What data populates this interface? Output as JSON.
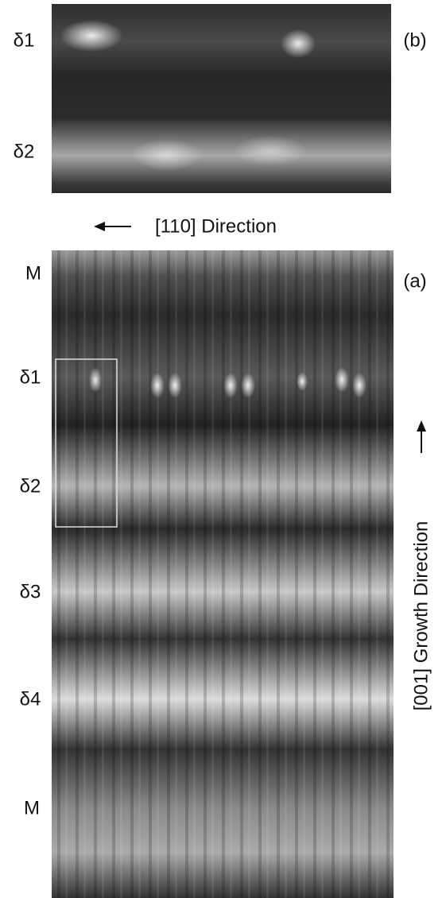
{
  "panel_b": {
    "label": "(b)",
    "rows": [
      "δ1",
      "δ2"
    ]
  },
  "direction_label": "[110] Direction",
  "panel_a": {
    "label": "(a)",
    "rows": [
      "M",
      "δ1",
      "δ2",
      "δ3",
      "δ4",
      "M"
    ],
    "growth_label": "[001] Growth Direction"
  }
}
